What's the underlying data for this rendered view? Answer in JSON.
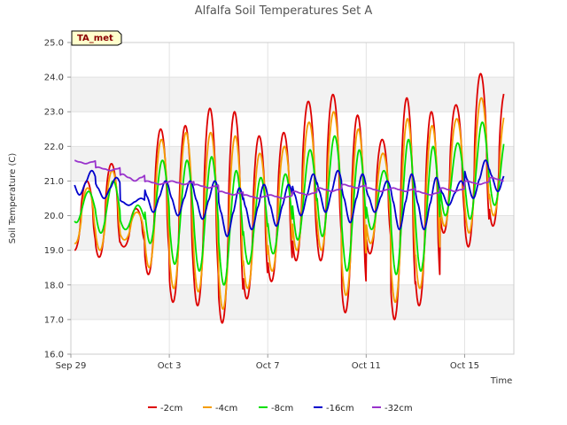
{
  "chart_data": {
    "type": "line",
    "title": "Alfalfa Soil Temperatures Set A",
    "badge": "TA_met",
    "xlabel": "Time",
    "ylabel": "Soil Temperature (C)",
    "ylim": [
      16.0,
      25.0
    ],
    "xlim": [
      "Sep 29",
      "Oct 17"
    ],
    "yticks": [
      "16.0",
      "17.0",
      "18.0",
      "19.0",
      "20.0",
      "21.0",
      "22.0",
      "23.0",
      "24.0",
      "25.0"
    ],
    "xticks": [
      {
        "label": "Sep 29",
        "day": 0
      },
      {
        "label": "Oct 3",
        "day": 4
      },
      {
        "label": "Oct 7",
        "day": 8
      },
      {
        "label": "Oct 11",
        "day": 12
      },
      {
        "label": "Oct 15",
        "day": 16
      }
    ],
    "grid": true,
    "legend_position": "bottom",
    "days": [
      "Sep 29",
      "Sep 30",
      "Oct 1",
      "Oct 2",
      "Oct 3",
      "Oct 4",
      "Oct 5",
      "Oct 6",
      "Oct 7",
      "Oct 8",
      "Oct 9",
      "Oct 10",
      "Oct 11",
      "Oct 12",
      "Oct 13",
      "Oct 14",
      "Oct 15",
      "Oct 16"
    ],
    "series": [
      {
        "name": "-2cm",
        "color": "#dd0000",
        "sharpness": 1.6,
        "phase": 0.0,
        "max": [
          21.0,
          21.5,
          20.2,
          22.5,
          22.6,
          23.1,
          23.0,
          22.3,
          22.4,
          23.3,
          23.5,
          22.9,
          22.2,
          23.4,
          23.0,
          23.2,
          24.1,
          23.6
        ],
        "min": [
          19.0,
          18.8,
          19.1,
          18.3,
          17.5,
          17.4,
          16.9,
          17.6,
          18.1,
          18.7,
          18.7,
          17.2,
          18.9,
          17.0,
          17.4,
          19.5,
          19.1,
          19.7
        ]
      },
      {
        "name": "-4cm",
        "color": "#f59d00",
        "sharpness": 1.4,
        "phase": 0.03,
        "max": [
          20.8,
          21.3,
          20.1,
          22.2,
          22.4,
          22.4,
          22.3,
          21.8,
          22.0,
          22.7,
          23.0,
          22.5,
          21.8,
          22.8,
          22.6,
          22.8,
          23.4,
          23.0
        ],
        "min": [
          19.2,
          19.0,
          19.3,
          18.5,
          17.9,
          17.8,
          17.3,
          17.9,
          18.4,
          19.0,
          19.0,
          17.7,
          19.2,
          17.5,
          17.9,
          19.7,
          19.5,
          20.0
        ]
      },
      {
        "name": "-8cm",
        "color": "#00e000",
        "sharpness": 1.0,
        "phase": 0.07,
        "max": [
          20.7,
          21.0,
          20.3,
          21.6,
          21.6,
          21.7,
          21.3,
          21.1,
          21.2,
          21.9,
          22.3,
          21.9,
          21.3,
          22.2,
          22.0,
          22.1,
          22.7,
          22.4
        ],
        "min": [
          19.8,
          19.5,
          19.6,
          19.2,
          18.6,
          18.4,
          18.0,
          18.6,
          18.9,
          19.3,
          19.4,
          18.4,
          19.6,
          18.3,
          18.4,
          20.0,
          19.9,
          20.3
        ]
      },
      {
        "name": "-16cm",
        "color": "#0000cc",
        "sharpness": 0.7,
        "phase": 0.2,
        "max": [
          21.3,
          21.1,
          20.5,
          21.0,
          21.0,
          21.0,
          20.8,
          20.9,
          20.9,
          21.2,
          21.3,
          21.2,
          21.0,
          21.2,
          21.1,
          21.0,
          21.6,
          21.6
        ],
        "min": [
          20.6,
          20.5,
          20.3,
          20.1,
          20.0,
          19.9,
          19.4,
          19.6,
          19.7,
          20.0,
          20.1,
          19.8,
          20.1,
          19.6,
          19.6,
          20.3,
          20.5,
          20.7
        ]
      },
      {
        "name": "-32cm",
        "color": "#9933cc",
        "sharpness": 0.5,
        "phase": 0.45,
        "max": [
          21.6,
          21.4,
          21.2,
          21.0,
          21.0,
          20.9,
          20.7,
          20.6,
          20.6,
          20.7,
          20.8,
          20.9,
          20.8,
          20.8,
          20.7,
          20.8,
          21.0,
          21.1
        ],
        "min": [
          21.5,
          21.3,
          21.0,
          20.9,
          20.9,
          20.8,
          20.6,
          20.5,
          20.5,
          20.6,
          20.7,
          20.8,
          20.7,
          20.7,
          20.6,
          20.7,
          20.9,
          21.0
        ]
      }
    ]
  }
}
